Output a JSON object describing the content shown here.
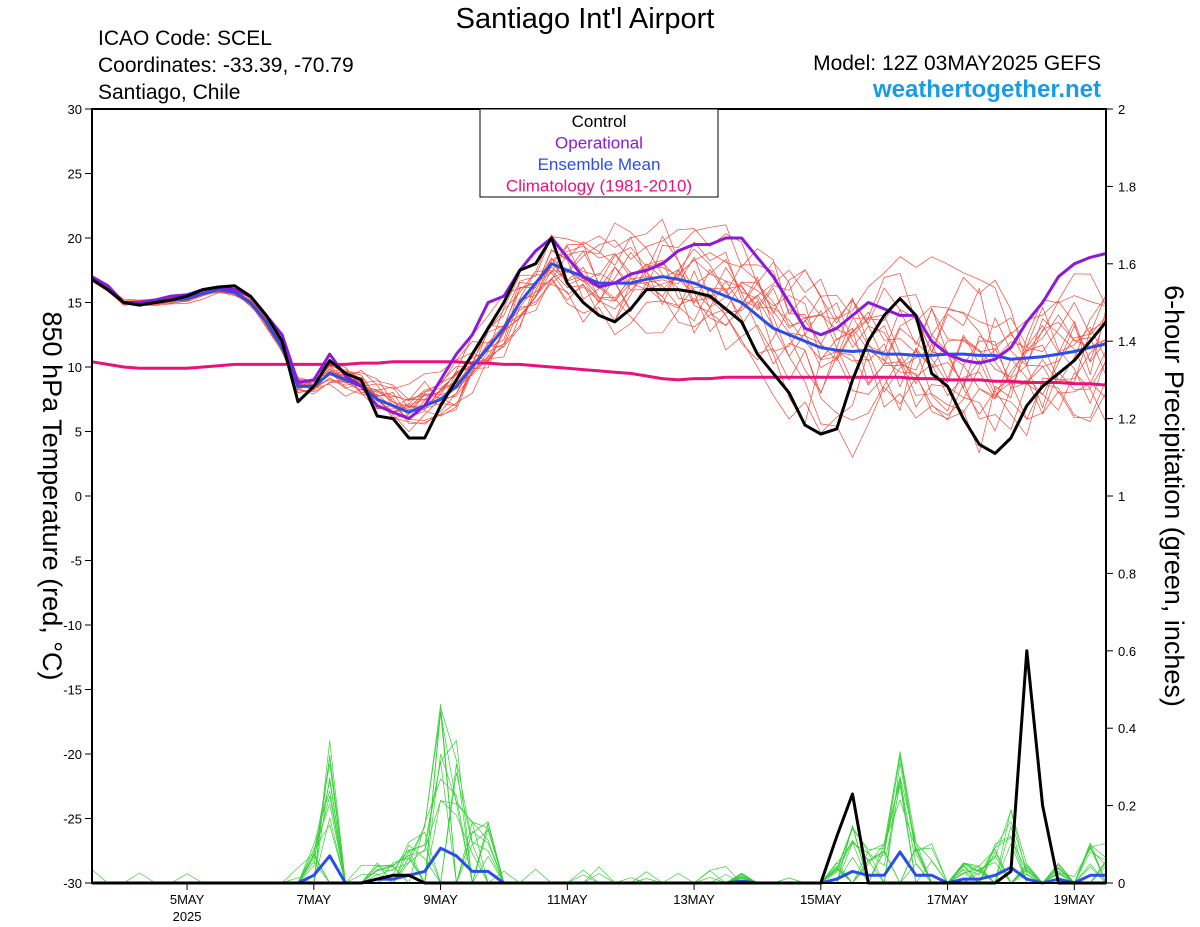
{
  "header": {
    "title": "Santiago Int'l Airport",
    "icao": "ICAO Code: SCEL",
    "coordinates": "Coordinates: -33.39, -70.79",
    "location": "Santiago, Chile",
    "model": "Model: 12Z 03MAY2025 GEFS",
    "site": "weathertogether.net"
  },
  "chart_data": {
    "type": "line",
    "ylabel": "850 hPa Temperature (red, °C)",
    "ylabel_right": "6-hour Precipitation (green, inches)",
    "ylim": [
      -30,
      30
    ],
    "ylim_right": [
      0,
      2
    ],
    "yticks": [
      "30",
      "25",
      "20",
      "15",
      "10",
      "5",
      "0",
      "-5",
      "-10",
      "-15",
      "-20",
      "-25",
      "-30"
    ],
    "yticks_right": [
      "2",
      "1.8",
      "1.6",
      "1.4",
      "1.2",
      "1",
      "0.8",
      "0.6",
      "0.4",
      "0.2",
      "0"
    ],
    "xlim_day": [
      3.5,
      19.5
    ],
    "xticks": [
      {
        "day": 5,
        "label": "5MAY",
        "sub": "2025"
      },
      {
        "day": 7,
        "label": "7MAY",
        "sub": ""
      },
      {
        "day": 9,
        "label": "9MAY",
        "sub": ""
      },
      {
        "day": 11,
        "label": "11MAY",
        "sub": ""
      },
      {
        "day": 13,
        "label": "13MAY",
        "sub": ""
      },
      {
        "day": 15,
        "label": "15MAY",
        "sub": ""
      },
      {
        "day": 17,
        "label": "17MAY",
        "sub": ""
      },
      {
        "day": 19,
        "label": "19MAY",
        "sub": ""
      }
    ],
    "legend": {
      "position": "top-center",
      "entries": [
        {
          "label": "Control",
          "color": "#000000"
        },
        {
          "label": "Operational",
          "color": "#8a1adc"
        },
        {
          "label": "Ensemble Mean",
          "color": "#2a4ee8"
        },
        {
          "label": "Climatology (1981-2010)",
          "color": "#e8127c"
        }
      ]
    },
    "colors": {
      "members": "#f04a3c",
      "precip_members": "#38d038",
      "climatology": "#e8127c"
    },
    "temperature": {
      "x": [
        3.5,
        3.75,
        4.0,
        4.25,
        4.5,
        4.75,
        5.0,
        5.25,
        5.5,
        5.75,
        6.0,
        6.25,
        6.5,
        6.75,
        7.0,
        7.25,
        7.5,
        7.75,
        8.0,
        8.25,
        8.5,
        8.75,
        9.0,
        9.25,
        9.5,
        9.75,
        10.0,
        10.25,
        10.5,
        10.75,
        11.0,
        11.25,
        11.5,
        11.75,
        12.0,
        12.25,
        12.5,
        12.75,
        13.0,
        13.25,
        13.5,
        13.75,
        14.0,
        14.25,
        14.5,
        14.75,
        15.0,
        15.25,
        15.5,
        15.75,
        16.0,
        16.25,
        16.5,
        16.75,
        17.0,
        17.25,
        17.5,
        17.75,
        18.0,
        18.25,
        18.5,
        18.75,
        19.0,
        19.25,
        19.5
      ],
      "control": [
        16.8,
        16.0,
        15.0,
        14.8,
        15.0,
        15.2,
        15.5,
        16.0,
        16.2,
        16.3,
        15.5,
        14.0,
        12.0,
        7.3,
        8.5,
        10.5,
        9.5,
        9.0,
        6.2,
        6.0,
        4.5,
        4.5,
        7.0,
        9.0,
        11.0,
        13.0,
        15.0,
        17.5,
        18.0,
        20.0,
        16.5,
        15.0,
        14.0,
        13.5,
        14.5,
        16.0,
        16.0,
        16.0,
        15.8,
        15.5,
        14.5,
        13.5,
        11.0,
        9.5,
        8.0,
        5.5,
        4.8,
        5.2,
        9.0,
        12.0,
        14.0,
        15.3,
        14.0,
        9.5,
        8.5,
        6.0,
        4.0,
        3.3,
        4.5,
        7.0,
        8.5,
        9.5,
        10.5,
        12.0,
        13.5
      ],
      "operational": [
        17.0,
        16.3,
        15.0,
        15.0,
        15.2,
        15.5,
        15.6,
        16.0,
        16.2,
        16.0,
        15.5,
        14.0,
        12.5,
        8.8,
        9.0,
        11.0,
        9.3,
        8.5,
        7.0,
        6.5,
        6.0,
        7.0,
        9.0,
        11.0,
        12.5,
        15.0,
        15.5,
        17.5,
        19.0,
        20.0,
        18.5,
        17.0,
        16.2,
        16.5,
        17.2,
        17.5,
        18.0,
        19.0,
        19.5,
        19.5,
        20.0,
        20.0,
        18.5,
        17.0,
        15.0,
        13.0,
        12.5,
        13.0,
        14.0,
        15.0,
        14.5,
        14.0,
        14.0,
        12.0,
        11.0,
        10.5,
        10.3,
        10.6,
        11.5,
        13.5,
        15.0,
        17.0,
        18.0,
        18.5,
        18.8
      ],
      "mean": [
        16.8,
        16.0,
        15.0,
        15.0,
        15.0,
        15.2,
        15.3,
        15.7,
        16.0,
        15.8,
        15.0,
        13.5,
        11.5,
        8.5,
        8.5,
        9.5,
        9.0,
        8.5,
        7.5,
        7.0,
        6.5,
        7.0,
        7.5,
        8.5,
        10.0,
        11.5,
        13.0,
        15.0,
        16.5,
        18.0,
        17.5,
        17.0,
        16.5,
        16.5,
        16.5,
        16.8,
        17.0,
        16.8,
        16.5,
        16.0,
        15.5,
        15.0,
        14.0,
        13.0,
        12.5,
        12.0,
        11.5,
        11.3,
        11.2,
        11.3,
        11.0,
        11.0,
        10.9,
        10.9,
        11.0,
        11.0,
        10.9,
        10.9,
        10.6,
        10.7,
        10.8,
        11.0,
        11.2,
        11.5,
        11.8
      ],
      "climatology": [
        10.4,
        10.2,
        10.0,
        9.9,
        9.9,
        9.9,
        9.9,
        10.0,
        10.1,
        10.2,
        10.2,
        10.2,
        10.2,
        10.2,
        10.2,
        10.2,
        10.2,
        10.3,
        10.3,
        10.4,
        10.4,
        10.4,
        10.4,
        10.4,
        10.3,
        10.3,
        10.2,
        10.2,
        10.1,
        10.0,
        9.9,
        9.8,
        9.7,
        9.6,
        9.5,
        9.3,
        9.1,
        9.0,
        9.1,
        9.1,
        9.2,
        9.2,
        9.2,
        9.2,
        9.2,
        9.2,
        9.2,
        9.2,
        9.2,
        9.2,
        9.2,
        9.2,
        9.1,
        9.1,
        9.0,
        9.0,
        9.0,
        8.9,
        8.9,
        8.8,
        8.8,
        8.8,
        8.7,
        8.7,
        8.6
      ]
    },
    "precipitation": {
      "x": [
        3.5,
        3.75,
        4.0,
        4.25,
        4.5,
        4.75,
        5.0,
        5.25,
        5.5,
        5.75,
        6.0,
        6.25,
        6.5,
        6.75,
        7.0,
        7.25,
        7.5,
        7.75,
        8.0,
        8.25,
        8.5,
        8.75,
        9.0,
        9.25,
        9.5,
        9.75,
        10.0,
        10.25,
        10.5,
        10.75,
        11.0,
        11.25,
        11.5,
        11.75,
        12.0,
        12.25,
        12.5,
        12.75,
        13.0,
        13.25,
        13.5,
        13.75,
        14.0,
        14.25,
        14.5,
        14.75,
        15.0,
        15.25,
        15.5,
        15.75,
        16.0,
        16.25,
        16.5,
        16.75,
        17.0,
        17.25,
        17.5,
        17.75,
        18.0,
        18.25,
        18.5,
        18.75,
        19.0,
        19.25,
        19.5
      ],
      "control": [
        0,
        0,
        0,
        0,
        0,
        0,
        0,
        0,
        0,
        0,
        0,
        0,
        0,
        0,
        0,
        0,
        0,
        0,
        0.01,
        0.02,
        0.02,
        0,
        0,
        0,
        0,
        0,
        0,
        0,
        0,
        0,
        0,
        0,
        0,
        0,
        0,
        0,
        0,
        0,
        0,
        0,
        0,
        0,
        0,
        0,
        0,
        0,
        0,
        0.12,
        0.23,
        0,
        0,
        0,
        0,
        0,
        0,
        0,
        0,
        0,
        0.03,
        0.6,
        0.2,
        0,
        0,
        0,
        0
      ],
      "mean": [
        0,
        0,
        0,
        0,
        0,
        0,
        0,
        0,
        0,
        0,
        0,
        0,
        0,
        0,
        0.02,
        0.07,
        0,
        0,
        0.01,
        0.01,
        0.02,
        0.03,
        0.09,
        0.07,
        0.03,
        0.03,
        0,
        0,
        0,
        0,
        0,
        0,
        0,
        0,
        0,
        0,
        0,
        0,
        0,
        0,
        0,
        0.005,
        0,
        0,
        0,
        0,
        0,
        0.01,
        0.03,
        0.02,
        0.02,
        0.08,
        0.02,
        0.02,
        0,
        0.01,
        0.01,
        0.02,
        0.04,
        0.01,
        0,
        0.01,
        0,
        0.02,
        0.02
      ]
    }
  }
}
